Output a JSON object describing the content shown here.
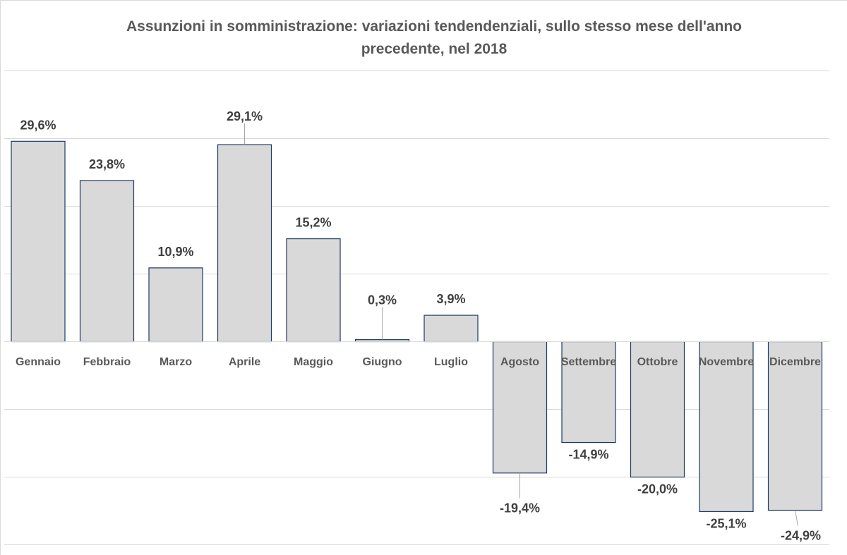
{
  "chart_data": {
    "type": "bar",
    "title_lines": [
      "Assunzioni in somministrazione: variazioni tendendenziali, sullo stesso mese dell'anno",
      "precedente, nel 2018"
    ],
    "categories": [
      "Gennaio",
      "Febbraio",
      "Marzo",
      "Aprile",
      "Maggio",
      "Giugno",
      "Luglio",
      "Agosto",
      "Settembre",
      "Ottobre",
      "Novembre",
      "Dicembre"
    ],
    "values": [
      29.6,
      23.8,
      10.9,
      29.1,
      15.2,
      0.3,
      3.9,
      -19.4,
      -14.9,
      -20.0,
      -25.1,
      -24.9
    ],
    "data_labels": [
      "29,6%",
      "23,8%",
      "10,9%",
      "29,1%",
      "15,2%",
      "0,3%",
      "3,9%",
      "-19,4%",
      "-14,9%",
      "-20,0%",
      "-25,1%",
      "-24,9%"
    ],
    "xlabel": "",
    "ylabel": "",
    "ylim": [
      -30,
      40
    ],
    "y_gridline_step": 10,
    "grid": true,
    "legend": "none",
    "colors": {
      "bar_fill": "#d9d9d9",
      "bar_stroke": "#1f3864",
      "grid": "#d9d9d9",
      "title": "#595959",
      "label": "#404040",
      "leader": "#a6a6a6"
    }
  }
}
